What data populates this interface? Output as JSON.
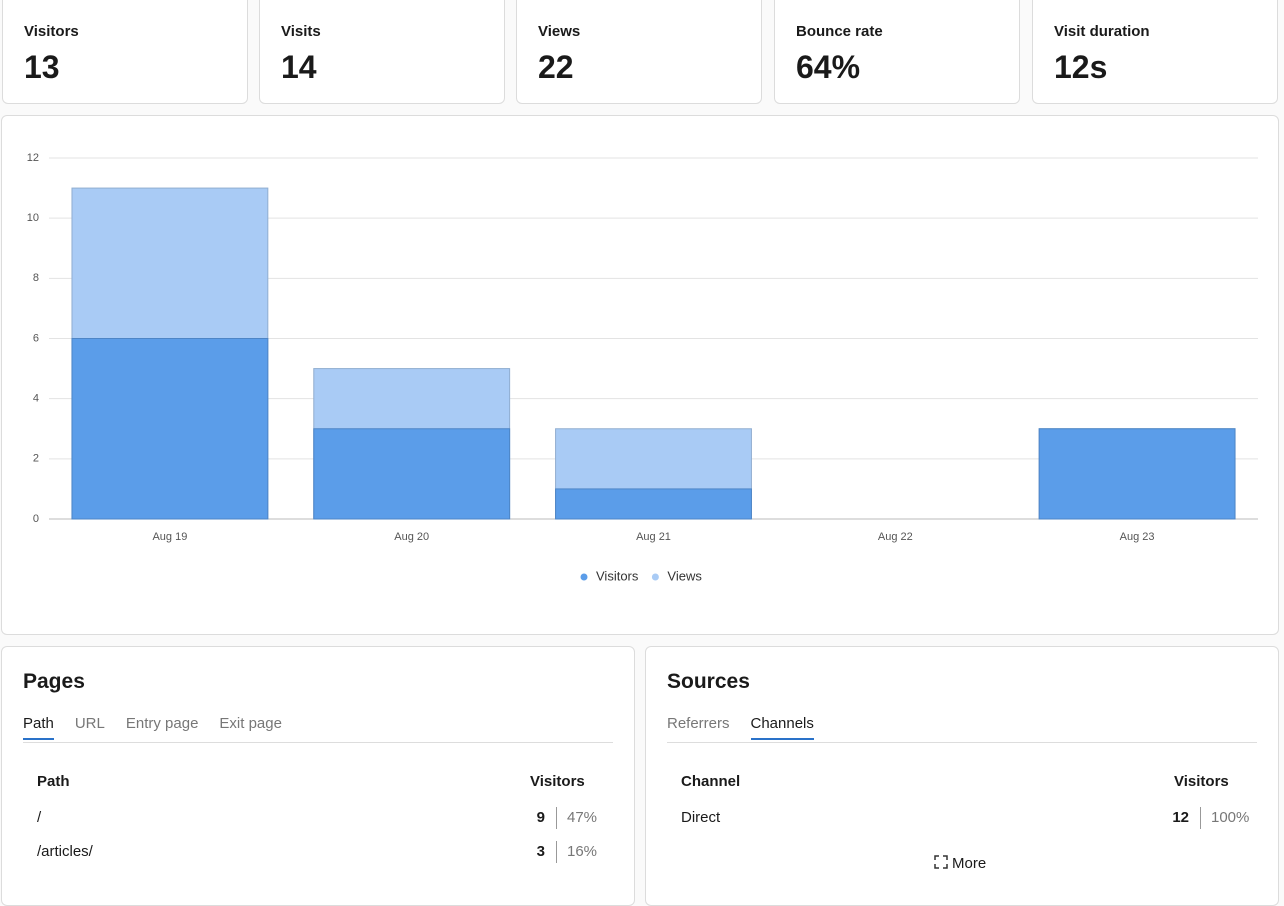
{
  "metrics": [
    {
      "label": "Visitors",
      "value": "13"
    },
    {
      "label": "Visits",
      "value": "14"
    },
    {
      "label": "Views",
      "value": "22"
    },
    {
      "label": "Bounce rate",
      "value": "64%"
    },
    {
      "label": "Visit duration",
      "value": "12s"
    }
  ],
  "chart_data": {
    "type": "bar",
    "categories": [
      "Aug 19",
      "Aug 20",
      "Aug 21",
      "Aug 22",
      "Aug 23"
    ],
    "series": [
      {
        "name": "Visitors",
        "color": "#5b9de9",
        "values": [
          6,
          3,
          1,
          0,
          3
        ]
      },
      {
        "name": "Views",
        "color": "#a9cbf5",
        "values": [
          11,
          5,
          3,
          0,
          3
        ]
      }
    ],
    "ylim": [
      0,
      12
    ],
    "yticks": [
      0,
      2,
      4,
      6,
      8,
      10,
      12
    ],
    "grid": true,
    "legend": "bottom"
  },
  "pages": {
    "title": "Pages",
    "tabs": [
      "Path",
      "URL",
      "Entry page",
      "Exit page"
    ],
    "active_tab": 0,
    "columns": [
      "Path",
      "Visitors"
    ],
    "rows": [
      [
        "/",
        "9",
        "47%"
      ],
      [
        "/articles/",
        "3",
        "16%"
      ]
    ]
  },
  "sources": {
    "title": "Sources",
    "tabs": [
      "Referrers",
      "Channels"
    ],
    "active_tab": 1,
    "columns": [
      "Channel",
      "Visitors"
    ],
    "rows": [
      [
        "Direct",
        "12",
        "100%"
      ]
    ],
    "more": "More"
  }
}
